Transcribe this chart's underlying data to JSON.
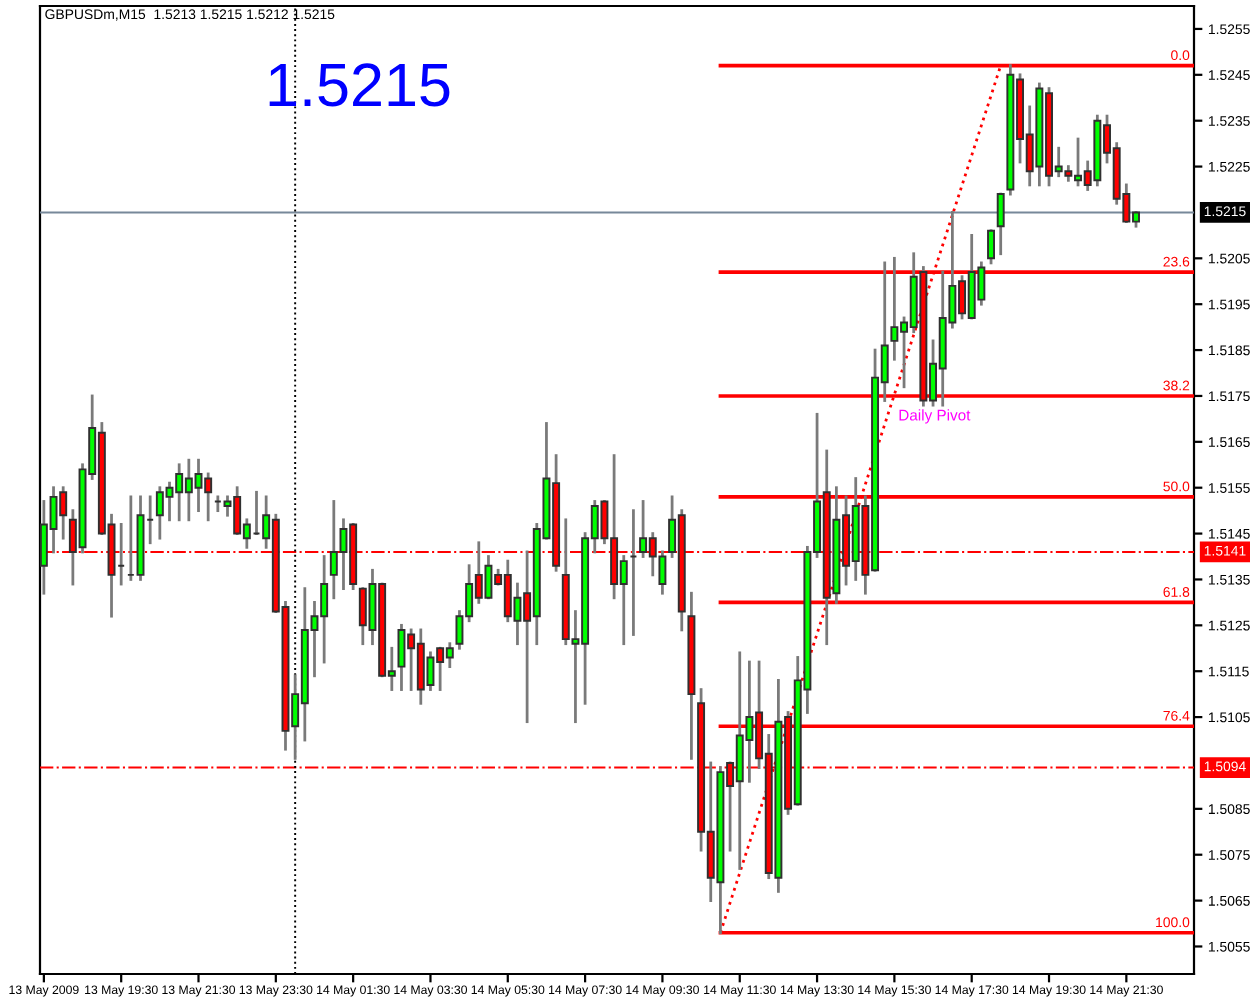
{
  "chart_data": {
    "type": "candlestick",
    "title": "GBPUSDm,M15  1.5213 1.5215 1.5212 1.5215",
    "annotations": [
      "1.5215",
      "Daily Pivot"
    ],
    "x": [
      "2009-05-13T17:30",
      "2009-05-13T17:45",
      "2009-05-13T18:00",
      "2009-05-13T18:15",
      "2009-05-13T18:30",
      "2009-05-13T18:45",
      "2009-05-13T19:00",
      "2009-05-13T19:15",
      "2009-05-13T19:30",
      "2009-05-13T19:45",
      "2009-05-13T20:00",
      "2009-05-13T20:15",
      "2009-05-13T20:30",
      "2009-05-13T20:45",
      "2009-05-13T21:00",
      "2009-05-13T21:15",
      "2009-05-13T21:30",
      "2009-05-13T21:45",
      "2009-05-13T22:00",
      "2009-05-13T22:15",
      "2009-05-13T22:30",
      "2009-05-13T22:45",
      "2009-05-13T23:00",
      "2009-05-13T23:15",
      "2009-05-13T23:30",
      "2009-05-13T23:45",
      "2009-05-14T00:00",
      "2009-05-14T00:15",
      "2009-05-14T00:30",
      "2009-05-14T00:45",
      "2009-05-14T01:00",
      "2009-05-14T01:15",
      "2009-05-14T01:30",
      "2009-05-14T01:45",
      "2009-05-14T02:00",
      "2009-05-14T02:15",
      "2009-05-14T02:30",
      "2009-05-14T02:45",
      "2009-05-14T03:00",
      "2009-05-14T03:15",
      "2009-05-14T03:30",
      "2009-05-14T03:45",
      "2009-05-14T04:00",
      "2009-05-14T04:15",
      "2009-05-14T04:30",
      "2009-05-14T04:45",
      "2009-05-14T05:00",
      "2009-05-14T05:15",
      "2009-05-14T05:30",
      "2009-05-14T05:45",
      "2009-05-14T06:00",
      "2009-05-14T06:15",
      "2009-05-14T06:30",
      "2009-05-14T06:45",
      "2009-05-14T07:00",
      "2009-05-14T07:15",
      "2009-05-14T07:30",
      "2009-05-14T07:45",
      "2009-05-14T08:00",
      "2009-05-14T08:15",
      "2009-05-14T08:30",
      "2009-05-14T08:45",
      "2009-05-14T09:00",
      "2009-05-14T09:15",
      "2009-05-14T09:30",
      "2009-05-14T09:45",
      "2009-05-14T10:00",
      "2009-05-14T10:15",
      "2009-05-14T10:30",
      "2009-05-14T10:45",
      "2009-05-14T11:00",
      "2009-05-14T11:15",
      "2009-05-14T11:30",
      "2009-05-14T11:45",
      "2009-05-14T12:00",
      "2009-05-14T12:15",
      "2009-05-14T12:30",
      "2009-05-14T12:45",
      "2009-05-14T13:00",
      "2009-05-14T13:15",
      "2009-05-14T13:30",
      "2009-05-14T13:45",
      "2009-05-14T14:00",
      "2009-05-14T14:15",
      "2009-05-14T14:30",
      "2009-05-14T14:45",
      "2009-05-14T15:00",
      "2009-05-14T15:15",
      "2009-05-14T15:30",
      "2009-05-14T15:45",
      "2009-05-14T16:00",
      "2009-05-14T16:15",
      "2009-05-14T16:30",
      "2009-05-14T16:45",
      "2009-05-14T17:00",
      "2009-05-14T17:15",
      "2009-05-14T17:30",
      "2009-05-14T17:45",
      "2009-05-14T18:00",
      "2009-05-14T18:15",
      "2009-05-14T18:30",
      "2009-05-14T18:45",
      "2009-05-14T19:00",
      "2009-05-14T19:15",
      "2009-05-14T19:30",
      "2009-05-14T19:45",
      "2009-05-14T20:00",
      "2009-05-14T20:15",
      "2009-05-14T20:30",
      "2009-05-14T20:45",
      "2009-05-14T21:00",
      "2009-05-14T21:15",
      "2009-05-14T21:30",
      "2009-05-14T21:45"
    ],
    "ohlc": [
      [
        1.5138,
        1.5152,
        1.5132,
        1.5147
      ],
      [
        1.5146,
        1.5155,
        1.5141,
        1.5153
      ],
      [
        1.5154,
        1.5155,
        1.5144,
        1.5149
      ],
      [
        1.5148,
        1.515,
        1.5134,
        1.5141
      ],
      [
        1.5142,
        1.516,
        1.5141,
        1.5159
      ],
      [
        1.5158,
        1.5175,
        1.5157,
        1.5168
      ],
      [
        1.5167,
        1.5169,
        1.5145,
        1.5145
      ],
      [
        1.5147,
        1.5149,
        1.5127,
        1.5136
      ],
      [
        1.5138,
        1.5147,
        1.5134,
        1.5138
      ],
      [
        1.5136,
        1.5153,
        1.5135,
        1.5136
      ],
      [
        1.5136,
        1.5153,
        1.5135,
        1.5149
      ],
      [
        1.5148,
        1.5153,
        1.5143,
        1.5148
      ],
      [
        1.5149,
        1.5155,
        1.5144,
        1.5154
      ],
      [
        1.5153,
        1.5156,
        1.5148,
        1.5155
      ],
      [
        1.5154,
        1.516,
        1.5148,
        1.5158
      ],
      [
        1.5154,
        1.5161,
        1.5148,
        1.5157
      ],
      [
        1.5155,
        1.5161,
        1.515,
        1.5158
      ],
      [
        1.5157,
        1.5158,
        1.5148,
        1.5154
      ],
      [
        1.5152,
        1.5153,
        1.515,
        1.5152
      ],
      [
        1.5151,
        1.5153,
        1.5149,
        1.5152
      ],
      [
        1.5153,
        1.5155,
        1.5145,
        1.5145
      ],
      [
        1.5144,
        1.5148,
        1.5142,
        1.5147
      ],
      [
        1.5145,
        1.5154,
        1.5145,
        1.5145
      ],
      [
        1.5144,
        1.5153,
        1.5142,
        1.5149
      ],
      [
        1.5148,
        1.5149,
        1.5128,
        1.5128
      ],
      [
        1.5129,
        1.513,
        1.5098,
        1.5102
      ],
      [
        1.5103,
        1.5114,
        1.5096,
        1.511
      ],
      [
        1.5108,
        1.5133,
        1.51,
        1.5124
      ],
      [
        1.5124,
        1.513,
        1.5114,
        1.5127
      ],
      [
        1.5127,
        1.514,
        1.5117,
        1.5134
      ],
      [
        1.5136,
        1.5152,
        1.5131,
        1.5141
      ],
      [
        1.5141,
        1.5148,
        1.5133,
        1.5146
      ],
      [
        1.5147,
        1.5147,
        1.5133,
        1.5134
      ],
      [
        1.5133,
        1.5133,
        1.5121,
        1.5125
      ],
      [
        1.5124,
        1.5137,
        1.5121,
        1.5134
      ],
      [
        1.5134,
        1.5134,
        1.5114,
        1.5114
      ],
      [
        1.5114,
        1.512,
        1.5111,
        1.5115
      ],
      [
        1.5116,
        1.5125,
        1.5111,
        1.5124
      ],
      [
        1.5123,
        1.5124,
        1.5111,
        1.512
      ],
      [
        1.5121,
        1.5124,
        1.5108,
        1.5111
      ],
      [
        1.5112,
        1.5119,
        1.5111,
        1.5118
      ],
      [
        1.512,
        1.512,
        1.5111,
        1.5117
      ],
      [
        1.5118,
        1.5121,
        1.5116,
        1.512
      ],
      [
        1.5121,
        1.5128,
        1.512,
        1.5127
      ],
      [
        1.5127,
        1.5138,
        1.5126,
        1.5134
      ],
      [
        1.5136,
        1.5143,
        1.513,
        1.5131
      ],
      [
        1.5131,
        1.514,
        1.5131,
        1.5138
      ],
      [
        1.5136,
        1.5137,
        1.5134,
        1.5134
      ],
      [
        1.5136,
        1.5139,
        1.5126,
        1.5127
      ],
      [
        1.5126,
        1.5134,
        1.5121,
        1.5131
      ],
      [
        1.5132,
        1.5141,
        1.5104,
        1.5126
      ],
      [
        1.5127,
        1.5147,
        1.5121,
        1.5146
      ],
      [
        1.5144,
        1.5169,
        1.5144,
        1.5157
      ],
      [
        1.5156,
        1.5162,
        1.5137,
        1.5138
      ],
      [
        1.5136,
        1.5148,
        1.5121,
        1.5122
      ],
      [
        1.5121,
        1.5128,
        1.5104,
        1.5122
      ],
      [
        1.5121,
        1.5145,
        1.5108,
        1.5144
      ],
      [
        1.5144,
        1.5152,
        1.5141,
        1.5151
      ],
      [
        1.5152,
        1.5152,
        1.5143,
        1.5144
      ],
      [
        1.5144,
        1.5162,
        1.5131,
        1.5134
      ],
      [
        1.5134,
        1.514,
        1.5121,
        1.5139
      ],
      [
        1.514,
        1.515,
        1.5123,
        1.514
      ],
      [
        1.5141,
        1.5152,
        1.514,
        1.5144
      ],
      [
        1.5144,
        1.5145,
        1.5136,
        1.514
      ],
      [
        1.5134,
        1.5141,
        1.5132,
        1.514
      ],
      [
        1.5141,
        1.5153,
        1.514,
        1.5148
      ],
      [
        1.5149,
        1.515,
        1.5124,
        1.5128
      ],
      [
        1.5127,
        1.5132,
        1.5096,
        1.511
      ],
      [
        1.5108,
        1.5111,
        1.5076,
        1.508
      ],
      [
        1.508,
        1.5095,
        1.5065,
        1.507
      ],
      [
        1.5069,
        1.5094,
        1.5058,
        1.5093
      ],
      [
        1.5095,
        1.5095,
        1.5076,
        1.509
      ],
      [
        1.5091,
        1.5119,
        1.5072,
        1.5101
      ],
      [
        1.51,
        1.5117,
        1.5091,
        1.5105
      ],
      [
        1.5106,
        1.5117,
        1.5094,
        1.5096
      ],
      [
        1.5097,
        1.5101,
        1.507,
        1.5071
      ],
      [
        1.507,
        1.5113,
        1.5067,
        1.5104
      ],
      [
        1.5105,
        1.5106,
        1.5084,
        1.5085
      ],
      [
        1.5086,
        1.5118,
        1.5086,
        1.5113
      ],
      [
        1.5111,
        1.5142,
        1.5106,
        1.5141
      ],
      [
        1.5141,
        1.5171,
        1.514,
        1.5152
      ],
      [
        1.5154,
        1.5163,
        1.5121,
        1.5131
      ],
      [
        1.5132,
        1.5155,
        1.513,
        1.5148
      ],
      [
        1.5149,
        1.5153,
        1.5134,
        1.5138
      ],
      [
        1.5139,
        1.5157,
        1.5135,
        1.5151
      ],
      [
        1.5151,
        1.5153,
        1.5132,
        1.5136
      ],
      [
        1.5137,
        1.5185,
        1.5137,
        1.5179
      ],
      [
        1.5178,
        1.5204,
        1.5174,
        1.5186
      ],
      [
        1.5187,
        1.5205,
        1.5183,
        1.519
      ],
      [
        1.5189,
        1.5192,
        1.5177,
        1.5191
      ],
      [
        1.519,
        1.5206,
        1.5189,
        1.5201
      ],
      [
        1.5202,
        1.5203,
        1.5173,
        1.5174
      ],
      [
        1.5174,
        1.5187,
        1.5173,
        1.5182
      ],
      [
        1.5181,
        1.5202,
        1.5173,
        1.5192
      ],
      [
        1.5191,
        1.5215,
        1.519,
        1.5199
      ],
      [
        1.52,
        1.5201,
        1.5192,
        1.5193
      ],
      [
        1.5192,
        1.521,
        1.5192,
        1.5202
      ],
      [
        1.5196,
        1.5204,
        1.5195,
        1.5203
      ],
      [
        1.5205,
        1.5211,
        1.5204,
        1.5211
      ],
      [
        1.5212,
        1.5219,
        1.5206,
        1.5219
      ],
      [
        1.522,
        1.5247,
        1.5219,
        1.5245
      ],
      [
        1.5244,
        1.5245,
        1.5226,
        1.5231
      ],
      [
        1.5232,
        1.5238,
        1.5221,
        1.5224
      ],
      [
        1.5225,
        1.5243,
        1.5221,
        1.5242
      ],
      [
        1.5241,
        1.5242,
        1.5221,
        1.5223
      ],
      [
        1.5224,
        1.5229,
        1.5223,
        1.5225
      ],
      [
        1.5224,
        1.5225,
        1.5222,
        1.5223
      ],
      [
        1.5222,
        1.5231,
        1.5221,
        1.5223
      ],
      [
        1.5224,
        1.5226,
        1.522,
        1.5221
      ],
      [
        1.5222,
        1.5236,
        1.5221,
        1.5235
      ],
      [
        1.5234,
        1.5236,
        1.5226,
        1.5228
      ],
      [
        1.5229,
        1.523,
        1.5217,
        1.5218
      ],
      [
        1.5219,
        1.5221,
        1.5213,
        1.5213
      ],
      [
        1.5213,
        1.5215,
        1.5212,
        1.5215
      ]
    ],
    "colors": [
      "#00ff00",
      "#00ff00",
      "#ff0000",
      "#ff0000",
      "#00ff00",
      "#00ff00",
      "#ff0000",
      "#ff0000",
      "#303030",
      "#303030",
      "#00ff00",
      "#303030",
      "#00ff00",
      "#00ff00",
      "#00ff00",
      "#00ff00",
      "#00ff00",
      "#ff0000",
      "#303030",
      "#00ff00",
      "#ff0000",
      "#00ff00",
      "#303030",
      "#00ff00",
      "#ff0000",
      "#ff0000",
      "#00ff00",
      "#00ff00",
      "#00ff00",
      "#00ff00",
      "#00ff00",
      "#00ff00",
      "#ff0000",
      "#ff0000",
      "#00ff00",
      "#ff0000",
      "#00ff00",
      "#00ff00",
      "#ff0000",
      "#ff0000",
      "#00ff00",
      "#ff0000",
      "#00ff00",
      "#00ff00",
      "#00ff00",
      "#ff0000",
      "#00ff00",
      "#ff0000",
      "#ff0000",
      "#00ff00",
      "#ff0000",
      "#00ff00",
      "#00ff00",
      "#ff0000",
      "#ff0000",
      "#00ff00",
      "#00ff00",
      "#00ff00",
      "#ff0000",
      "#ff0000",
      "#00ff00",
      "#303030",
      "#00ff00",
      "#ff0000",
      "#00ff00",
      "#00ff00",
      "#ff0000",
      "#ff0000",
      "#ff0000",
      "#ff0000",
      "#00ff00",
      "#ff0000",
      "#00ff00",
      "#00ff00",
      "#ff0000",
      "#ff0000",
      "#00ff00",
      "#ff0000",
      "#00ff00",
      "#00ff00",
      "#00ff00",
      "#ff0000",
      "#00ff00",
      "#ff0000",
      "#00ff00",
      "#ff0000",
      "#00ff00",
      "#00ff00",
      "#00ff00",
      "#00ff00",
      "#00ff00",
      "#ff0000",
      "#00ff00",
      "#00ff00",
      "#00ff00",
      "#ff0000",
      "#00ff00",
      "#00ff00",
      "#00ff00",
      "#00ff00",
      "#00ff00",
      "#ff0000",
      "#ff0000",
      "#00ff00",
      "#ff0000",
      "#00ff00",
      "#ff0000",
      "#00ff00",
      "#ff0000",
      "#00ff00",
      "#ff0000",
      "#ff0000",
      "#ff0000",
      "#00ff00"
    ],
    "series": [
      {
        "type": "line",
        "name": "0.0",
        "color": "#ff0000",
        "x": [
          "2009-05-14T11:00",
          "2009-05-14T23:15"
        ],
        "values": [
          1.5247,
          1.5247
        ]
      },
      {
        "type": "line",
        "name": "23.6",
        "color": "#ff0000",
        "x": [
          "2009-05-14T11:00",
          "2009-05-14T23:15"
        ],
        "values": [
          1.5202,
          1.5202
        ]
      },
      {
        "type": "line",
        "name": "38.2",
        "color": "#ff0000",
        "x": [
          "2009-05-14T11:00",
          "2009-05-14T23:15"
        ],
        "values": [
          1.5175,
          1.5175
        ]
      },
      {
        "type": "line",
        "name": "50.0",
        "color": "#ff0000",
        "x": [
          "2009-05-14T11:00",
          "2009-05-14T23:15"
        ],
        "values": [
          1.5153,
          1.5153
        ]
      },
      {
        "type": "line",
        "name": "61.8",
        "color": "#ff0000",
        "x": [
          "2009-05-14T11:00",
          "2009-05-14T23:15"
        ],
        "values": [
          1.513,
          1.513
        ]
      },
      {
        "type": "line",
        "name": "76.4",
        "color": "#ff0000",
        "x": [
          "2009-05-14T11:00",
          "2009-05-14T23:15"
        ],
        "values": [
          1.5103,
          1.5103
        ]
      },
      {
        "type": "line",
        "name": "100.0",
        "color": "#ff0000",
        "x": [
          "2009-05-14T11:00",
          "2009-05-14T23:15"
        ],
        "values": [
          1.5058,
          1.5058
        ]
      },
      {
        "type": "line",
        "color": "#ff0000",
        "line_style": "dotted",
        "x": [
          "2009-05-14T11:00",
          "2009-05-14T18:15"
        ],
        "values": [
          1.5058,
          1.5247
        ]
      }
    ],
    "ref_lines": [
      {
        "axis": "y",
        "value": 1.5215,
        "label": "1.5215",
        "color": "#778899",
        "line_style": "solid"
      },
      {
        "axis": "y",
        "value": 1.5141,
        "label": "1.5141",
        "color": "#ff0000",
        "line_style": "dashdot"
      },
      {
        "axis": "y",
        "value": 1.5094,
        "label": "1.5094",
        "color": "#ff0000",
        "line_style": "dashdot"
      },
      {
        "axis": "x",
        "value": "2009-05-14T00:00",
        "color": "#000000",
        "line_style": "dotted"
      }
    ],
    "xlim": [
      "2009-05-13T17:24",
      "2009-05-14T23:15"
    ],
    "xticks": [
      {
        "value": "2009-05-13T17:30",
        "label": "13 May 2009"
      },
      {
        "value": "2009-05-13T19:30",
        "label": "13 May 19:30"
      },
      {
        "value": "2009-05-13T21:30",
        "label": "13 May 21:30"
      },
      {
        "value": "2009-05-13T23:30",
        "label": "13 May 23:30"
      },
      {
        "value": "2009-05-14T01:30",
        "label": "14 May 01:30"
      },
      {
        "value": "2009-05-14T03:30",
        "label": "14 May 03:30"
      },
      {
        "value": "2009-05-14T05:30",
        "label": "14 May 05:30"
      },
      {
        "value": "2009-05-14T07:30",
        "label": "14 May 07:30"
      },
      {
        "value": "2009-05-14T09:30",
        "label": "14 May 09:30"
      },
      {
        "value": "2009-05-14T11:30",
        "label": "14 May 11:30"
      },
      {
        "value": "2009-05-14T13:30",
        "label": "14 May 13:30"
      },
      {
        "value": "2009-05-14T15:30",
        "label": "14 May 15:30"
      },
      {
        "value": "2009-05-14T17:30",
        "label": "14 May 17:30"
      },
      {
        "value": "2009-05-14T19:30",
        "label": "14 May 19:30"
      },
      {
        "value": "2009-05-14T21:30",
        "label": "14 May 21:30"
      }
    ],
    "ylim": [
      1.5049,
      1.526
    ],
    "yticks": [
      1.5055,
      1.5065,
      1.5075,
      1.5085,
      1.5105,
      1.5115,
      1.5125,
      1.5135,
      1.5145,
      1.5155,
      1.5165,
      1.5175,
      1.5185,
      1.5195,
      1.5205,
      1.5225,
      1.5235,
      1.5245,
      1.5255
    ]
  }
}
